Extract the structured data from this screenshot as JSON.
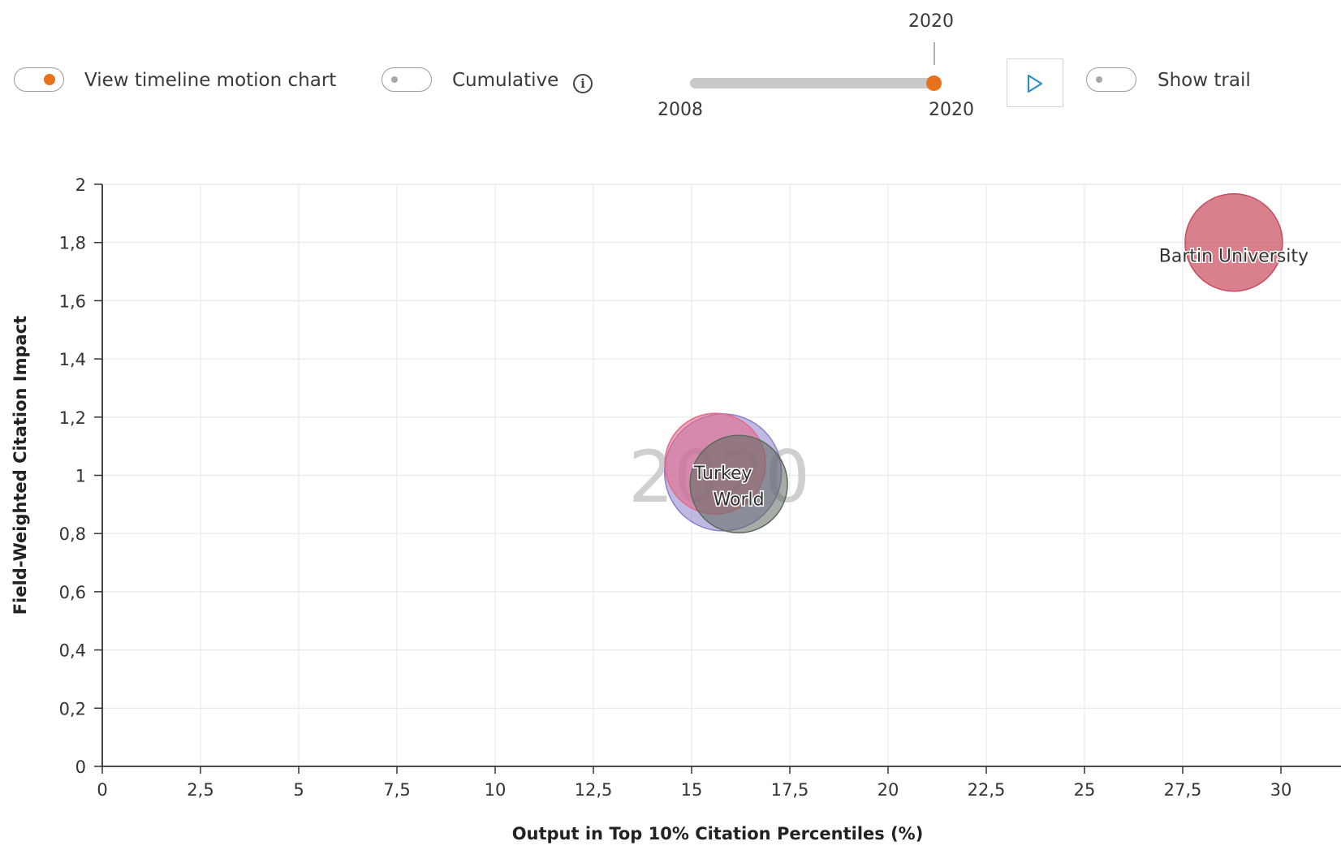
{
  "controls": {
    "timeline_toggle": {
      "label": "View timeline motion chart",
      "on": true
    },
    "cumulative_toggle": {
      "label": "Cumulative",
      "on": false
    },
    "info_icon": "info-icon",
    "year_slider": {
      "min_label": "2008",
      "max_label": "2020",
      "value_label": "2020",
      "min": 2008,
      "max": 2020,
      "value": 2020
    },
    "play_icon": "play-icon",
    "trail_toggle": {
      "label": "Show trail",
      "on": false
    }
  },
  "colors": {
    "accent": "#e9711c",
    "play_icon": "#2a8fbd",
    "grid": "#e8e8e8",
    "axis": "#333333"
  },
  "chart_data": {
    "type": "scatter",
    "variant": "bubble",
    "watermark_year": "2020",
    "xlabel": "Output in Top 10% Citation Percentiles (%)",
    "ylabel": "Field-Weighted Citation Impact",
    "xlim": [
      0,
      31.5
    ],
    "ylim": [
      0,
      2
    ],
    "x_ticks": [
      0,
      2.5,
      5,
      7.5,
      10,
      12.5,
      15,
      17.5,
      20,
      22.5,
      25,
      27.5,
      30
    ],
    "x_tick_labels": [
      "0",
      "2,5",
      "5",
      "7,5",
      "10",
      "12,5",
      "15",
      "17,5",
      "20",
      "22,5",
      "25",
      "27,5",
      "30"
    ],
    "y_ticks": [
      0,
      0.2,
      0.4,
      0.6,
      0.8,
      1,
      1.2,
      1.4,
      1.6,
      1.8,
      2
    ],
    "y_tick_labels": [
      "0",
      "0,2",
      "0,4",
      "0,6",
      "0,8",
      "1",
      "1,2",
      "1,4",
      "1,6",
      "1,8",
      "2"
    ],
    "grid": true,
    "series": [
      {
        "name": "Bartin University",
        "x": 28.8,
        "y": 1.8,
        "color": "#c94a5d",
        "label_offset": 0.2
      },
      {
        "x": 15.8,
        "y": 1.01,
        "color": "#8c80c8"
      },
      {
        "x": 15.6,
        "y": 1.04,
        "color": "#e26a8a"
      },
      {
        "name": "World",
        "x": 16.2,
        "y": 0.97,
        "color": "#5d6a5d"
      },
      {
        "name": "Turkey",
        "x": 15.8,
        "y": 1.01,
        "color": "#e26a8a"
      }
    ]
  }
}
